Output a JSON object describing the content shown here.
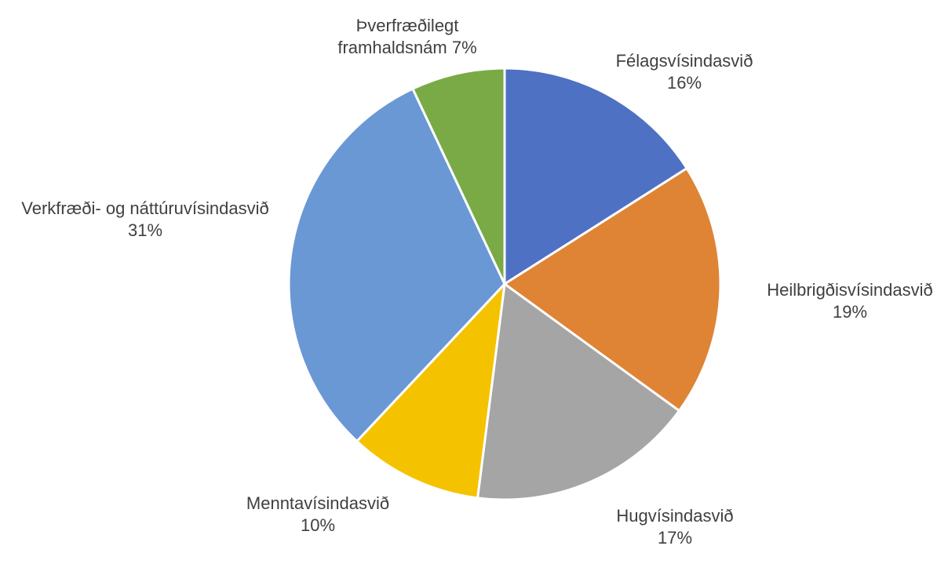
{
  "chart_data": {
    "type": "pie",
    "title": "",
    "start_angle_deg": 0,
    "direction": "clockwise",
    "slices": [
      {
        "category": "Félagsvísindasvið",
        "value": 16,
        "label_lines": [
          "Félagsvísindasvið",
          "16%"
        ],
        "color": "#4F71C3"
      },
      {
        "category": "Heilbrigðisvísindasvið",
        "value": 19,
        "label_lines": [
          "Heilbrigðisvísindasvið",
          "19%"
        ],
        "color": "#DF8435"
      },
      {
        "category": "Hugvísindasvið",
        "value": 17,
        "label_lines": [
          "Hugvísindasvið",
          "17%"
        ],
        "color": "#A5A5A5"
      },
      {
        "category": "Menntavísindasvið",
        "value": 10,
        "label_lines": [
          "Menntavísindasvið",
          "10%"
        ],
        "color": "#F5C200"
      },
      {
        "category": "Verkfræði- og náttúruvísindasvið",
        "value": 31,
        "label_lines": [
          "Verkfræði- og náttúruvísindasvið",
          "31%"
        ],
        "color": "#6A98D5"
      },
      {
        "category": "Þverfræðilegt framhaldsnám",
        "value": 7,
        "label_lines": [
          "Þverfræðilegt",
          "framhaldsnám 7%"
        ],
        "color": "#79AA46"
      }
    ],
    "legend": "none",
    "slice_border_color": "#FFFFFF",
    "label_color": "#404040"
  }
}
